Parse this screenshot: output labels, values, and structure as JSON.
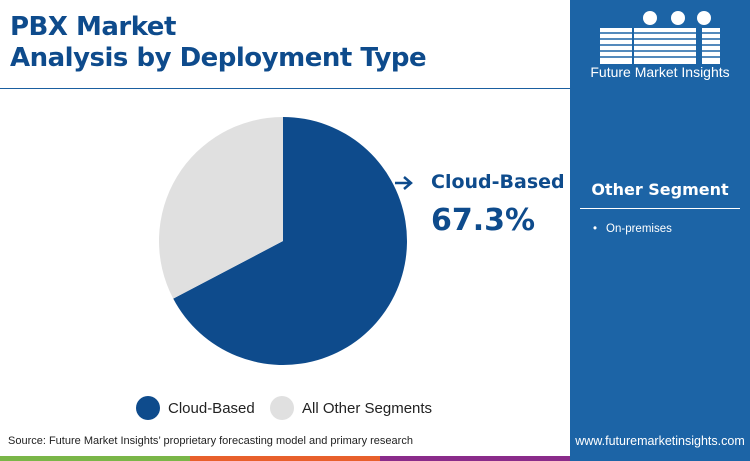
{
  "title_lines": [
    "PBX Market",
    "Analysis by Deployment Type"
  ],
  "logo": {
    "text": "Future Market Insights"
  },
  "side_panel": {
    "heading": "Other Segment",
    "items": [
      "On-premises"
    ],
    "website": "www.futuremarketinsights.com"
  },
  "callout": {
    "label": "Cloud-Based",
    "value": "67.3%"
  },
  "source": "Source: Future Market Insights’ proprietary forecasting model and primary research",
  "colors": {
    "primary": "#0e4b8c",
    "other": "#e0e0e0",
    "panel": "#1c64a6",
    "bars": [
      "#7ab648",
      "#e8602c",
      "#8a2b8a"
    ]
  },
  "chart_data": {
    "type": "pie",
    "categories": [
      "Cloud-Based",
      "All Other Segments"
    ],
    "values": [
      67.3,
      32.7
    ],
    "legend": [
      "Cloud-Based",
      "All Other Segments"
    ],
    "legend_position": "bottom"
  }
}
